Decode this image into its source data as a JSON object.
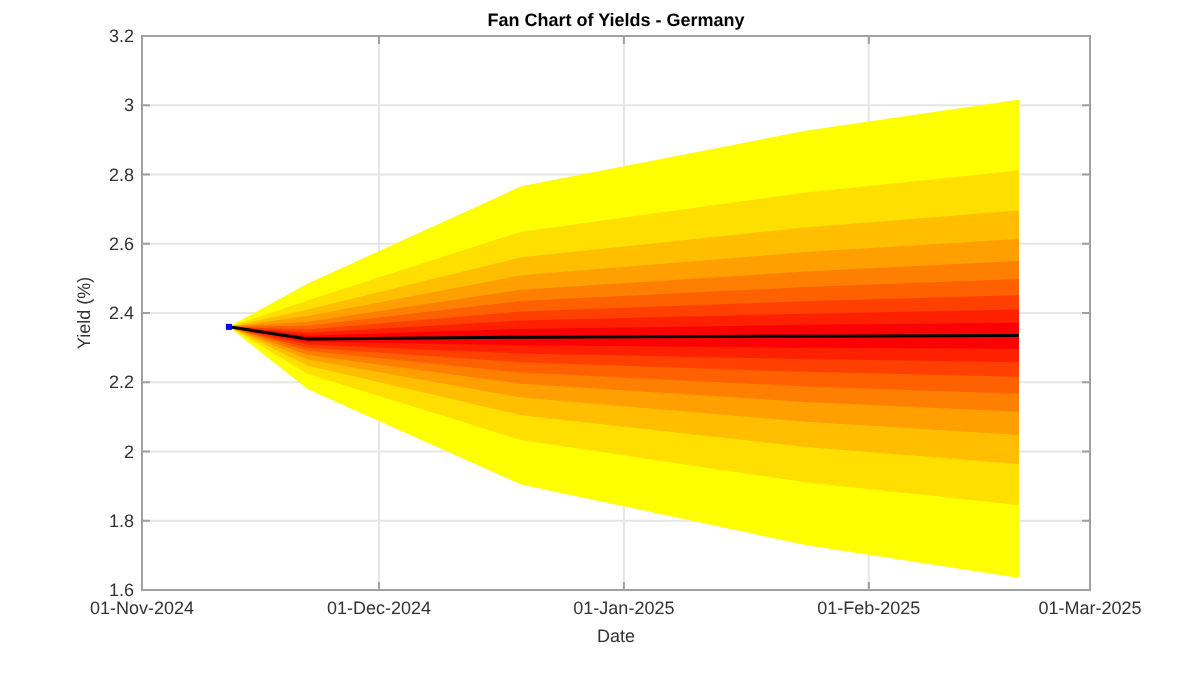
{
  "chart_data": {
    "type": "area",
    "title": "Fan Chart of Yields - Germany",
    "xlabel": "Date",
    "ylabel": "Yield (%)",
    "x": [
      "2024-11-12",
      "2024-11-22",
      "2024-12-19",
      "2025-01-24",
      "2025-02-20"
    ],
    "series": [
      {
        "color": "#ffff00",
        "values": [
          null,
          null,
          null,
          null,
          null
        ],
        "lower": [
          2.36,
          2.18,
          1.905,
          1.73,
          1.635
        ],
        "upper": [
          2.36,
          2.485,
          2.766,
          2.926,
          3.016
        ]
      },
      {
        "color": "#ffdf00",
        "values": [
          null,
          null,
          null,
          null,
          null
        ],
        "lower": [
          2.36,
          2.224,
          2.033,
          1.911,
          1.845
        ],
        "upper": [
          2.36,
          2.437,
          2.635,
          2.748,
          2.812
        ]
      },
      {
        "color": "#ffbf00",
        "values": [
          null,
          null,
          null,
          null,
          null
        ],
        "lower": [
          2.36,
          2.248,
          2.105,
          2.013,
          1.964
        ],
        "upper": [
          2.36,
          2.41,
          2.561,
          2.647,
          2.696
        ]
      },
      {
        "color": "#ff9f00",
        "values": [
          null,
          null,
          null,
          null,
          null
        ],
        "lower": [
          2.36,
          2.266,
          2.156,
          2.086,
          2.048
        ],
        "upper": [
          2.36,
          2.391,
          2.509,
          2.576,
          2.614
        ]
      },
      {
        "color": "#ff8000",
        "values": [
          null,
          null,
          null,
          null,
          null
        ],
        "lower": [
          2.36,
          2.279,
          2.196,
          2.143,
          2.115
        ],
        "upper": [
          2.36,
          2.375,
          2.467,
          2.52,
          2.55
        ]
      },
      {
        "color": "#ff6000",
        "values": [
          null,
          null,
          null,
          null,
          null
        ],
        "lower": [
          2.36,
          2.29,
          2.228,
          2.188,
          2.167
        ],
        "upper": [
          2.36,
          2.363,
          2.435,
          2.475,
          2.498
        ]
      },
      {
        "color": "#ff4000",
        "values": [
          null,
          null,
          null,
          null,
          null
        ],
        "lower": [
          2.36,
          2.3,
          2.258,
          2.23,
          2.216
        ],
        "upper": [
          2.36,
          2.352,
          2.404,
          2.434,
          2.451
        ]
      },
      {
        "color": "#ff2000",
        "values": [
          null,
          null,
          null,
          null,
          null
        ],
        "lower": [
          2.36,
          2.309,
          2.283,
          2.267,
          2.258
        ],
        "upper": [
          2.36,
          2.343,
          2.378,
          2.398,
          2.41
        ]
      },
      {
        "color": "#ff0000",
        "values": [
          null,
          null,
          null,
          null,
          null
        ],
        "lower": [
          2.36,
          2.317,
          2.307,
          2.3,
          2.297
        ],
        "upper": [
          2.36,
          2.334,
          2.354,
          2.366,
          2.372
        ]
      },
      {
        "type": "line",
        "color": "#000000",
        "values": [
          2.36,
          2.325,
          2.33,
          2.333,
          2.335
        ]
      },
      {
        "type": "scatter",
        "color": "#0000ff",
        "marker": "square",
        "x": [
          "2024-11-12"
        ],
        "values": [
          2.36
        ]
      }
    ],
    "xlim": [
      "2024-11-01",
      "2025-03-01"
    ],
    "xticks": [
      {
        "value": "2024-11-01",
        "label": "01-Nov-2024"
      },
      {
        "value": "2024-12-01",
        "label": "01-Dec-2024"
      },
      {
        "value": "2025-01-01",
        "label": "01-Jan-2025"
      },
      {
        "value": "2025-02-01",
        "label": "01-Feb-2025"
      },
      {
        "value": "2025-03-01",
        "label": "01-Mar-2025"
      }
    ],
    "ylim": [
      1.6,
      3.2
    ],
    "yticks": [
      1.6,
      1.8,
      2,
      2.2,
      2.4,
      2.6,
      2.8,
      3,
      3.2
    ],
    "grid": true,
    "marker": "none",
    "line_style": "solid"
  }
}
